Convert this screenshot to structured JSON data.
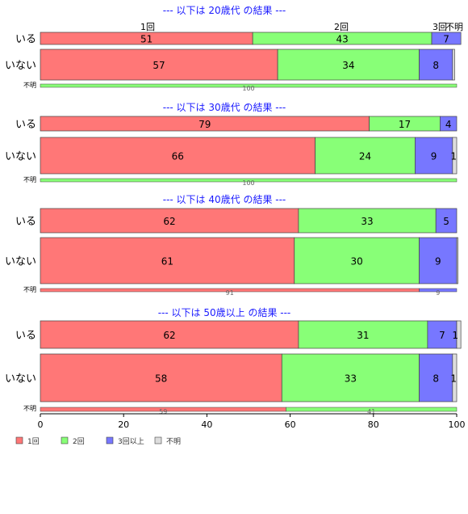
{
  "chart_data": {
    "type": "bar",
    "orientation": "horizontal",
    "stacked": "percent",
    "xlim": [
      0,
      100
    ],
    "x_ticks": [
      "0",
      "20",
      "40",
      "60",
      "80",
      "100"
    ],
    "categories": [
      "いる",
      "いない",
      "不明"
    ],
    "series_names": [
      "1回",
      "2回",
      "3回以上",
      "不明"
    ],
    "top_column_labels": [
      "1回",
      "2回",
      "3回",
      "不明"
    ],
    "colors": {
      "s1": "#ff7777",
      "s2": "#88ff77",
      "s3": "#7777ff",
      "s4": "#dddddd",
      "title": "#1a1aff"
    },
    "grid": false,
    "legend_position": "bottom-left",
    "groups": [
      {
        "title": "--- 以下は 20歳代 の結果 ---",
        "rows": [
          {
            "label": "いる",
            "values": [
              51,
              43,
              7,
              0
            ],
            "labels": [
              "51",
              "43",
              "7",
              ""
            ]
          },
          {
            "label": "いない",
            "values": [
              57,
              34,
              8,
              0.5
            ],
            "labels": [
              "57",
              "34",
              "8",
              ""
            ]
          },
          {
            "label": "不明",
            "values": [
              0,
              100,
              0,
              0
            ],
            "labels": [
              "",
              "100",
              "",
              ""
            ]
          }
        ]
      },
      {
        "title": "--- 以下は 30歳代 の結果 ---",
        "rows": [
          {
            "label": "いる",
            "values": [
              79,
              17,
              4,
              0
            ],
            "labels": [
              "79",
              "17",
              "4",
              ""
            ]
          },
          {
            "label": "いない",
            "values": [
              66,
              24,
              9,
              1
            ],
            "labels": [
              "66",
              "24",
              "9",
              "1"
            ]
          },
          {
            "label": "不明",
            "values": [
              0,
              100,
              0,
              0
            ],
            "labels": [
              "",
              "100",
              "",
              ""
            ]
          }
        ]
      },
      {
        "title": "--- 以下は 40歳代 の結果 ---",
        "rows": [
          {
            "label": "いる",
            "values": [
              62,
              33,
              5,
              0
            ],
            "labels": [
              "62",
              "33",
              "5",
              ""
            ]
          },
          {
            "label": "いない",
            "values": [
              61,
              30,
              9,
              0.3
            ],
            "labels": [
              "61",
              "30",
              "9",
              ""
            ]
          },
          {
            "label": "不明",
            "values": [
              91,
              0,
              9,
              0
            ],
            "labels": [
              "91",
              "",
              "9",
              ""
            ]
          }
        ]
      },
      {
        "title": "--- 以下は 50歳以上 の結果 ---",
        "rows": [
          {
            "label": "いる",
            "values": [
              62,
              31,
              7,
              1
            ],
            "labels": [
              "62",
              "31",
              "7",
              "1"
            ]
          },
          {
            "label": "いない",
            "values": [
              58,
              33,
              8,
              1
            ],
            "labels": [
              "58",
              "33",
              "8",
              "1"
            ]
          },
          {
            "label": "不明",
            "values": [
              59,
              41,
              0,
              0
            ],
            "labels": [
              "59",
              "41",
              "",
              ""
            ]
          }
        ]
      }
    ]
  }
}
